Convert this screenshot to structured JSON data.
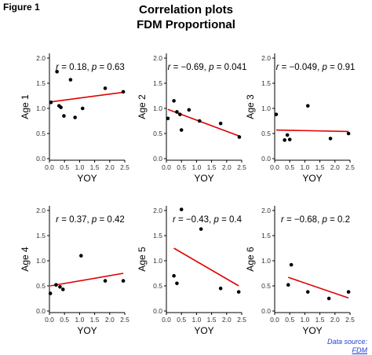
{
  "figure_label": "Figure 1",
  "title": "Correlation plots",
  "subtitle": "FDM Proportional",
  "source": {
    "label": "Data source:",
    "link": "FDM"
  },
  "colors": {
    "regression_line": "#e00000",
    "point": "#000000",
    "axis": "#000000",
    "source_text": "#1f3fd6"
  },
  "chart_data": [
    {
      "type": "scatter",
      "annotation": {
        "r": "0.18",
        "p": "0.63"
      },
      "xlabel": "YOY",
      "ylabel": "Age 1",
      "xlim": [
        0,
        2.5
      ],
      "ylim": [
        0,
        2.0
      ],
      "xticks": [
        "0.0",
        "0.5",
        "1.0",
        "1.5",
        "2.0",
        "2.5"
      ],
      "yticks": [
        "0.0",
        "0.5",
        "1.0",
        "1.5",
        "2.0"
      ],
      "points": [
        [
          0.05,
          1.12
        ],
        [
          0.25,
          1.73
        ],
        [
          0.32,
          1.05
        ],
        [
          0.38,
          1.02
        ],
        [
          0.48,
          0.85
        ],
        [
          0.7,
          1.57
        ],
        [
          0.85,
          0.82
        ],
        [
          1.1,
          1.0
        ],
        [
          1.85,
          1.4
        ],
        [
          2.45,
          1.33
        ]
      ],
      "fit_line": [
        [
          0.05,
          1.13
        ],
        [
          2.45,
          1.32
        ]
      ]
    },
    {
      "type": "scatter",
      "annotation": {
        "r": "−0.69",
        "p": "0.041"
      },
      "xlabel": "YOY",
      "ylabel": "Age 2",
      "xlim": [
        0,
        2.5
      ],
      "ylim": [
        0,
        2.0
      ],
      "xticks": [
        "0.0",
        "0.5",
        "1.0",
        "1.5",
        "2.0",
        "2.5"
      ],
      "yticks": [
        "0.0",
        "0.5",
        "1.0",
        "1.5",
        "2.0"
      ],
      "points": [
        [
          0.05,
          0.8
        ],
        [
          0.25,
          1.15
        ],
        [
          0.35,
          0.93
        ],
        [
          0.45,
          0.88
        ],
        [
          0.5,
          0.57
        ],
        [
          0.75,
          0.97
        ],
        [
          1.1,
          0.75
        ],
        [
          1.8,
          0.7
        ],
        [
          2.42,
          0.43
        ]
      ],
      "fit_line": [
        [
          0.05,
          0.98
        ],
        [
          2.42,
          0.45
        ]
      ]
    },
    {
      "type": "scatter",
      "annotation": {
        "r": "−0.049",
        "p": "0.91"
      },
      "xlabel": "YOY",
      "ylabel": "Age 3",
      "xlim": [
        0,
        2.5
      ],
      "ylim": [
        0,
        2.0
      ],
      "xticks": [
        "0.0",
        "0.5",
        "1.0",
        "1.5",
        "2.0",
        "2.5"
      ],
      "yticks": [
        "0.0",
        "0.5",
        "1.0",
        "1.5",
        "2.0"
      ],
      "points": [
        [
          0.05,
          0.88
        ],
        [
          0.33,
          0.37
        ],
        [
          0.42,
          0.47
        ],
        [
          0.5,
          0.38
        ],
        [
          1.1,
          1.05
        ],
        [
          1.85,
          0.4
        ],
        [
          2.45,
          0.5
        ]
      ],
      "fit_line": [
        [
          0.05,
          0.57
        ],
        [
          2.45,
          0.54
        ]
      ]
    },
    {
      "type": "scatter",
      "annotation": {
        "r": "0.37",
        "p": "0.42"
      },
      "xlabel": "YOY",
      "ylabel": "Age 4",
      "xlim": [
        0,
        2.5
      ],
      "ylim": [
        0,
        2.0
      ],
      "xticks": [
        "0.0",
        "0.5",
        "1.0",
        "1.5",
        "2.0",
        "2.5"
      ],
      "yticks": [
        "0.0",
        "0.5",
        "1.0",
        "1.5",
        "2.0"
      ],
      "points": [
        [
          0.03,
          0.35
        ],
        [
          0.22,
          0.52
        ],
        [
          0.35,
          0.48
        ],
        [
          0.45,
          0.43
        ],
        [
          1.05,
          1.1
        ],
        [
          1.85,
          0.6
        ],
        [
          2.45,
          0.6
        ]
      ],
      "fit_line": [
        [
          0.03,
          0.5
        ],
        [
          2.45,
          0.75
        ]
      ]
    },
    {
      "type": "scatter",
      "annotation": {
        "r": "−0.43",
        "p": "0.4"
      },
      "xlabel": "YOY",
      "ylabel": "Age 5",
      "xlim": [
        0,
        2.5
      ],
      "ylim": [
        0,
        2.0
      ],
      "xticks": [
        "0.0",
        "0.5",
        "1.0",
        "1.5",
        "2.0",
        "2.5"
      ],
      "yticks": [
        "0.0",
        "0.5",
        "1.0",
        "1.5",
        "2.0"
      ],
      "points": [
        [
          0.25,
          0.7
        ],
        [
          0.35,
          0.55
        ],
        [
          0.5,
          2.02
        ],
        [
          1.15,
          1.63
        ],
        [
          1.8,
          0.45
        ],
        [
          2.4,
          0.38
        ]
      ],
      "fit_line": [
        [
          0.25,
          1.25
        ],
        [
          2.4,
          0.5
        ]
      ]
    },
    {
      "type": "scatter",
      "annotation": {
        "r": "−0.68",
        "p": "0.2"
      },
      "xlabel": "YOY",
      "ylabel": "Age 6",
      "xlim": [
        0,
        2.5
      ],
      "ylim": [
        0,
        2.0
      ],
      "xticks": [
        "0.0",
        "0.5",
        "1.0",
        "1.5",
        "2.0",
        "2.5"
      ],
      "yticks": [
        "0.0",
        "0.5",
        "1.0",
        "1.5",
        "2.0"
      ],
      "points": [
        [
          0.45,
          0.52
        ],
        [
          0.55,
          0.92
        ],
        [
          1.1,
          0.38
        ],
        [
          1.8,
          0.25
        ],
        [
          2.45,
          0.38
        ]
      ],
      "fit_line": [
        [
          0.45,
          0.67
        ],
        [
          2.45,
          0.26
        ]
      ]
    }
  ]
}
